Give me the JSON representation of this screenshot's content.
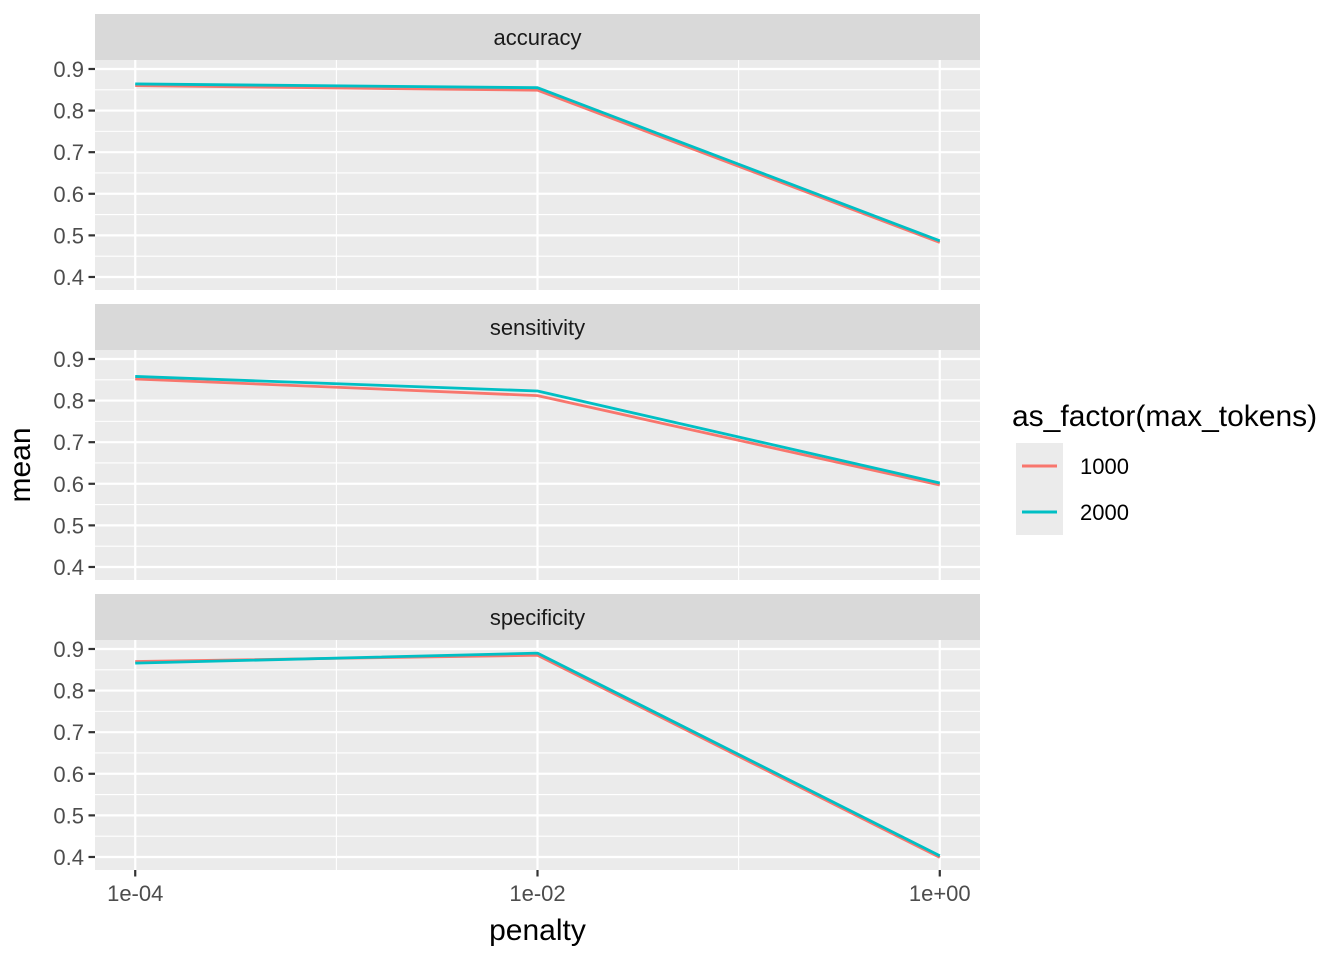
{
  "chart_data": {
    "type": "line",
    "title": "",
    "xlabel": "penalty",
    "ylabel": "mean",
    "x_scale": "log10",
    "x_log": [
      -4,
      -2,
      0
    ],
    "x_tick_labels": [
      "1e-04",
      "1e-02",
      "1e+00"
    ],
    "x_minor_log": [
      -3,
      -1
    ],
    "xlim_log": [
      -4.2,
      0.2
    ],
    "y_ticks": [
      0.4,
      0.5,
      0.6,
      0.7,
      0.8,
      0.9
    ],
    "y_tick_labels": [
      "0.4",
      "0.5",
      "0.6",
      "0.7",
      "0.8",
      "0.9"
    ],
    "y_minor": [
      0.45,
      0.55,
      0.65,
      0.75,
      0.85
    ],
    "ylim": [
      0.3687,
      0.9216
    ],
    "grid": true,
    "legend_position": "right",
    "facets": [
      {
        "label": "accuracy",
        "series": [
          {
            "name": "1000",
            "color": "#F8766D",
            "values": [
              0.86,
              0.849,
              0.483
            ]
          },
          {
            "name": "2000",
            "color": "#00BFC4",
            "values": [
              0.864,
              0.855,
              0.487
            ]
          }
        ]
      },
      {
        "label": "sensitivity",
        "series": [
          {
            "name": "1000",
            "color": "#F8766D",
            "values": [
              0.852,
              0.812,
              0.597
            ]
          },
          {
            "name": "2000",
            "color": "#00BFC4",
            "values": [
              0.858,
              0.823,
              0.602
            ]
          }
        ]
      },
      {
        "label": "specificity",
        "series": [
          {
            "name": "1000",
            "color": "#F8766D",
            "values": [
              0.87,
              0.885,
              0.399
            ]
          },
          {
            "name": "2000",
            "color": "#00BFC4",
            "values": [
              0.866,
              0.89,
              0.403
            ]
          }
        ]
      }
    ],
    "legend": {
      "title": "as_factor(max_tokens)",
      "items": [
        {
          "label": "1000",
          "color": "#F8766D"
        },
        {
          "label": "2000",
          "color": "#00BFC4"
        }
      ]
    }
  },
  "colors": {
    "panel_bg": "#EBEBEB",
    "strip_bg": "#D9D9D9",
    "grid": "#FFFFFF",
    "tick_mark": "#333333",
    "tick_label": "#4D4D4D",
    "strip_text": "#1A1A1A",
    "title_text": "#000000",
    "legend_key_bg": "#EBEBEB",
    "series_1000": "#F8766D",
    "series_2000": "#00BFC4"
  }
}
